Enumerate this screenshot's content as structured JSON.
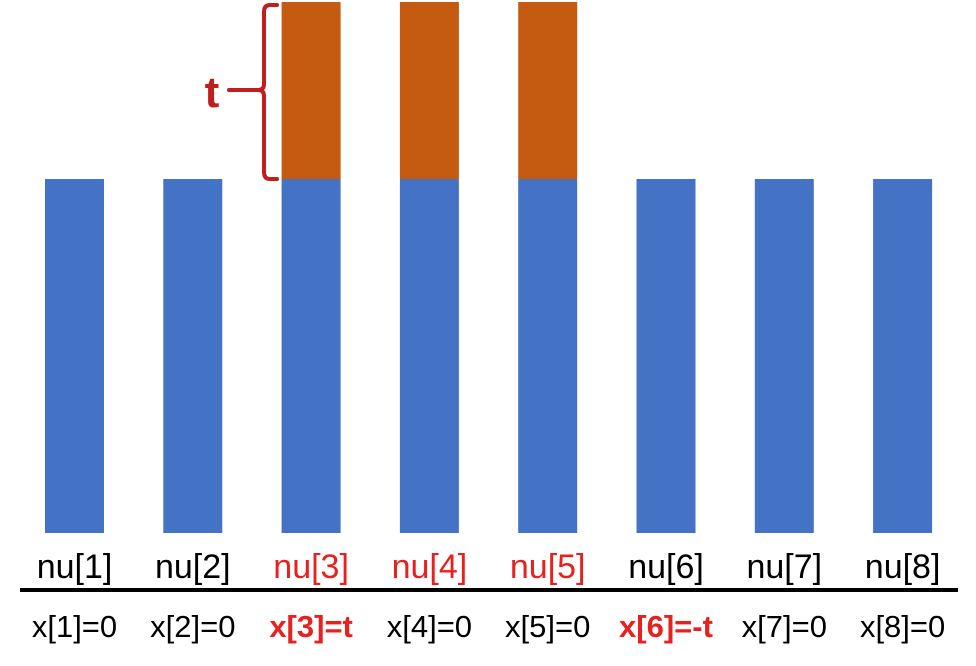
{
  "colors": {
    "base_bar": "#4472C4",
    "raised_bar": "#C55A11",
    "highlight_text": "#E8211F",
    "normal_text": "#000000",
    "bracket": "#C0201D",
    "axis": "#000000"
  },
  "bracket_label": "t",
  "columns": [
    {
      "nu_label": "nu[1]",
      "x_label": "x[1]=0",
      "raised": false,
      "nu_highlight": false,
      "x_highlight": false
    },
    {
      "nu_label": "nu[2]",
      "x_label": "x[2]=0",
      "raised": false,
      "nu_highlight": false,
      "x_highlight": false
    },
    {
      "nu_label": "nu[3]",
      "x_label": "x[3]=t",
      "raised": true,
      "nu_highlight": true,
      "x_highlight": true
    },
    {
      "nu_label": "nu[4]",
      "x_label": "x[4]=0",
      "raised": true,
      "nu_highlight": true,
      "x_highlight": false
    },
    {
      "nu_label": "nu[5]",
      "x_label": "x[5]=0",
      "raised": true,
      "nu_highlight": true,
      "x_highlight": false
    },
    {
      "nu_label": "nu[6]",
      "x_label": "x[6]=-t",
      "raised": false,
      "nu_highlight": false,
      "x_highlight": true
    },
    {
      "nu_label": "nu[7]",
      "x_label": "x[7]=0",
      "raised": false,
      "nu_highlight": false,
      "x_highlight": false
    },
    {
      "nu_label": "nu[8]",
      "x_label": "x[8]=0",
      "raised": false,
      "nu_highlight": false,
      "x_highlight": false
    }
  ]
}
